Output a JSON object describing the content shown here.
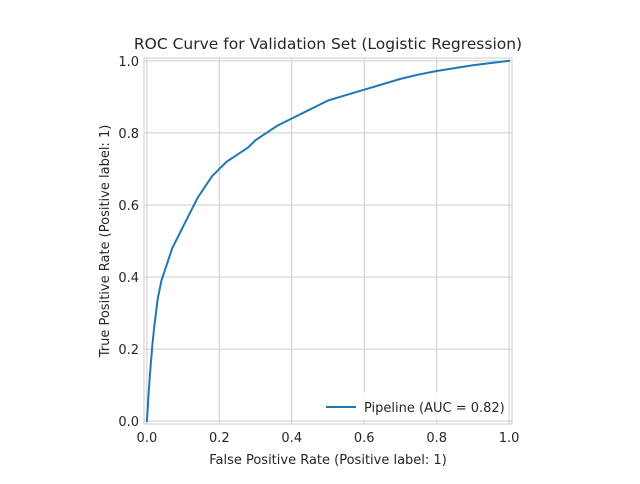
{
  "chart_data": {
    "type": "line",
    "title": "ROC Curve for Validation Set (Logistic Regression)",
    "xlabel": "False Positive Rate (Positive label: 1)",
    "ylabel": "True Positive Rate (Positive label: 1)",
    "xlim": [
      0.0,
      1.0
    ],
    "ylim": [
      0.0,
      1.0
    ],
    "xticks": [
      "0.0",
      "0.2",
      "0.4",
      "0.6",
      "0.8",
      "1.0"
    ],
    "yticks": [
      "0.0",
      "0.2",
      "0.4",
      "0.6",
      "0.8",
      "1.0"
    ],
    "grid": true,
    "legend_position": "bottom-right",
    "series": [
      {
        "name": "Pipeline (AUC = 0.82)",
        "color": "#1f77b4",
        "x": [
          0.0,
          0.005,
          0.01,
          0.015,
          0.02,
          0.025,
          0.03,
          0.04,
          0.05,
          0.06,
          0.07,
          0.08,
          0.1,
          0.12,
          0.14,
          0.16,
          0.18,
          0.2,
          0.22,
          0.25,
          0.28,
          0.3,
          0.33,
          0.36,
          0.4,
          0.44,
          0.48,
          0.5,
          0.55,
          0.6,
          0.65,
          0.7,
          0.75,
          0.8,
          0.85,
          0.9,
          0.95,
          1.0
        ],
        "y": [
          0.0,
          0.08,
          0.15,
          0.21,
          0.26,
          0.3,
          0.34,
          0.39,
          0.42,
          0.45,
          0.48,
          0.5,
          0.54,
          0.58,
          0.62,
          0.65,
          0.68,
          0.7,
          0.72,
          0.74,
          0.76,
          0.78,
          0.8,
          0.82,
          0.84,
          0.86,
          0.88,
          0.89,
          0.905,
          0.92,
          0.935,
          0.95,
          0.962,
          0.972,
          0.98,
          0.988,
          0.994,
          1.0
        ]
      }
    ]
  }
}
